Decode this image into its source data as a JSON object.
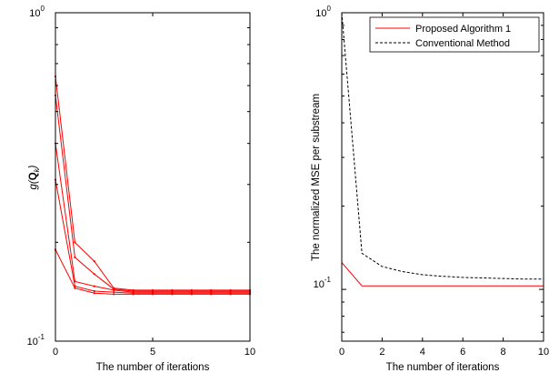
{
  "chart_data": [
    {
      "type": "line",
      "yscale": "log",
      "xlim": [
        0,
        10
      ],
      "ylim": [
        0.1,
        1
      ],
      "xticks": [
        0,
        5,
        10
      ],
      "ytick_labels": [
        "10^0",
        "10^-1"
      ],
      "xlabel": "The number of iterations",
      "ylabel": "g(Q_k)",
      "grid": false,
      "color": "#ff0000",
      "series": [
        {
          "x": [
            0,
            1,
            2,
            3,
            4,
            5,
            6,
            7,
            8,
            9,
            10
          ],
          "y": [
            0.64,
            0.2,
            0.175,
            0.145,
            0.143,
            0.143,
            0.143,
            0.143,
            0.143,
            0.143,
            0.143
          ]
        },
        {
          "x": [
            0,
            1,
            2,
            3,
            4,
            5,
            6,
            7,
            8,
            9,
            10
          ],
          "y": [
            0.56,
            0.18,
            0.16,
            0.144,
            0.142,
            0.142,
            0.142,
            0.142,
            0.142,
            0.142,
            0.142
          ]
        },
        {
          "x": [
            0,
            1,
            2,
            3,
            4,
            5,
            6,
            7,
            8,
            9,
            10
          ],
          "y": [
            0.4,
            0.152,
            0.147,
            0.143,
            0.141,
            0.141,
            0.141,
            0.141,
            0.141,
            0.141,
            0.141
          ]
        },
        {
          "x": [
            0,
            1,
            2,
            3,
            4,
            5,
            6,
            7,
            8,
            9,
            10
          ],
          "y": [
            0.31,
            0.147,
            0.142,
            0.141,
            0.14,
            0.14,
            0.14,
            0.14,
            0.14,
            0.14,
            0.14
          ]
        },
        {
          "x": [
            0,
            1,
            2,
            3,
            4,
            5,
            6,
            7,
            8,
            9,
            10
          ],
          "y": [
            0.19,
            0.145,
            0.14,
            0.139,
            0.139,
            0.139,
            0.139,
            0.139,
            0.139,
            0.139,
            0.139
          ]
        }
      ]
    },
    {
      "type": "line",
      "yscale": "log",
      "xlim": [
        0,
        10
      ],
      "ylim": [
        0.065,
        1
      ],
      "xticks": [
        0,
        2,
        4,
        6,
        8,
        10
      ],
      "ytick_labels": [
        "10^0",
        "10^-1"
      ],
      "xlabel": "The number of iterations",
      "ylabel": "The normalized MSE per substream",
      "grid": false,
      "legend": "top-right",
      "series": [
        {
          "name": "Proposed Algorithm 1",
          "color": "#ff0000",
          "style": "solid",
          "x": [
            0,
            1,
            2,
            3,
            4,
            5,
            6,
            7,
            8,
            9,
            10
          ],
          "y": [
            0.125,
            0.103,
            0.103,
            0.103,
            0.103,
            0.103,
            0.103,
            0.103,
            0.103,
            0.103,
            0.103
          ]
        },
        {
          "name": "Conventional Method",
          "color": "#000000",
          "style": "dashed",
          "x": [
            0,
            1,
            2,
            3,
            4,
            5,
            6,
            7,
            8,
            9,
            10
          ],
          "y": [
            1.0,
            0.135,
            0.121,
            0.116,
            0.113,
            0.1115,
            0.1105,
            0.11,
            0.1095,
            0.109,
            0.109
          ]
        }
      ]
    }
  ]
}
